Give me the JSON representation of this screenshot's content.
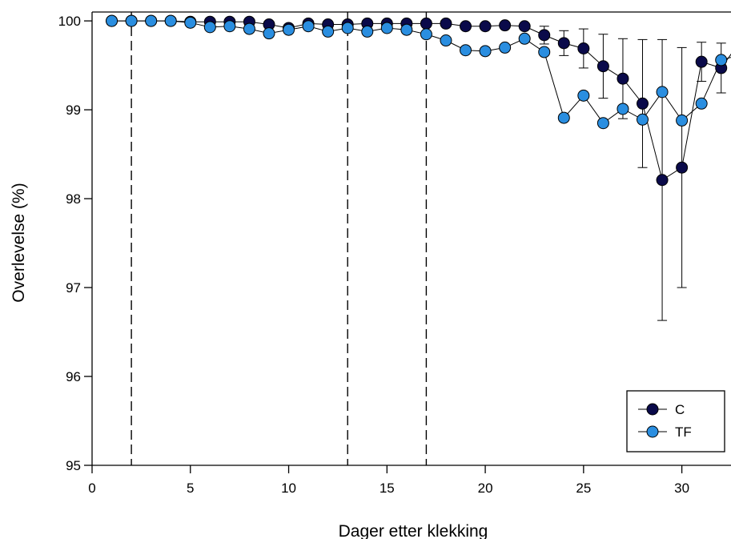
{
  "chart_data": {
    "type": "line",
    "title": "",
    "xlabel": "Dager etter klekking",
    "ylabel": "Overlevelse (%)",
    "xlim": [
      0,
      32.5
    ],
    "ylim": [
      95,
      100.1
    ],
    "xticks": [
      "0",
      "5",
      "10",
      "15",
      "20",
      "25",
      "30"
    ],
    "yticks": [
      "95",
      "96",
      "97",
      "98",
      "99",
      "100"
    ],
    "vlines": [
      2,
      13,
      17
    ],
    "legend_position": "bottom-right",
    "series": [
      {
        "name": "C",
        "color": "#0a0a4a",
        "x": [
          1,
          2,
          3,
          4,
          5,
          6,
          7,
          8,
          9,
          10,
          11,
          12,
          13,
          14,
          15,
          16,
          17,
          18,
          19,
          20,
          21,
          22,
          23,
          24,
          25,
          26,
          27,
          28,
          29,
          30,
          31,
          32,
          33
        ],
        "y": [
          100,
          100,
          100,
          100,
          99.99,
          99.99,
          99.99,
          99.99,
          99.96,
          99.92,
          99.97,
          99.96,
          99.96,
          99.97,
          99.97,
          99.97,
          99.97,
          99.97,
          99.94,
          99.94,
          99.95,
          99.94,
          99.84,
          99.75,
          99.69,
          99.49,
          99.35,
          99.07,
          98.21,
          98.35,
          99.54,
          99.47,
          99.78
        ],
        "err": [
          0,
          0,
          0,
          0,
          0.01,
          0.01,
          0.01,
          0.01,
          0.02,
          0.03,
          0.02,
          0.02,
          0.02,
          0.02,
          0.02,
          0.02,
          0.02,
          0.02,
          0.03,
          0.03,
          0.03,
          0.03,
          0.1,
          0.14,
          0.22,
          0.36,
          0.45,
          0.72,
          1.58,
          1.35,
          0.22,
          0.28,
          0.1
        ]
      },
      {
        "name": "TF",
        "color": "#2a8ee0",
        "x": [
          1,
          2,
          3,
          4,
          5,
          6,
          7,
          8,
          9,
          10,
          11,
          12,
          13,
          14,
          15,
          16,
          17,
          18,
          19,
          20,
          21,
          22,
          23,
          24,
          25,
          26,
          27,
          28,
          29,
          30,
          31,
          32,
          33
        ],
        "y": [
          100,
          100,
          100,
          100,
          99.98,
          99.93,
          99.94,
          99.91,
          99.86,
          99.9,
          99.94,
          99.88,
          99.92,
          99.88,
          99.92,
          99.9,
          99.85,
          99.78,
          99.67,
          99.66,
          99.7,
          99.8,
          99.65,
          98.91,
          99.16,
          98.85,
          99.01,
          98.89,
          99.2,
          98.88,
          99.07,
          99.56,
          99.62
        ]
      }
    ]
  }
}
